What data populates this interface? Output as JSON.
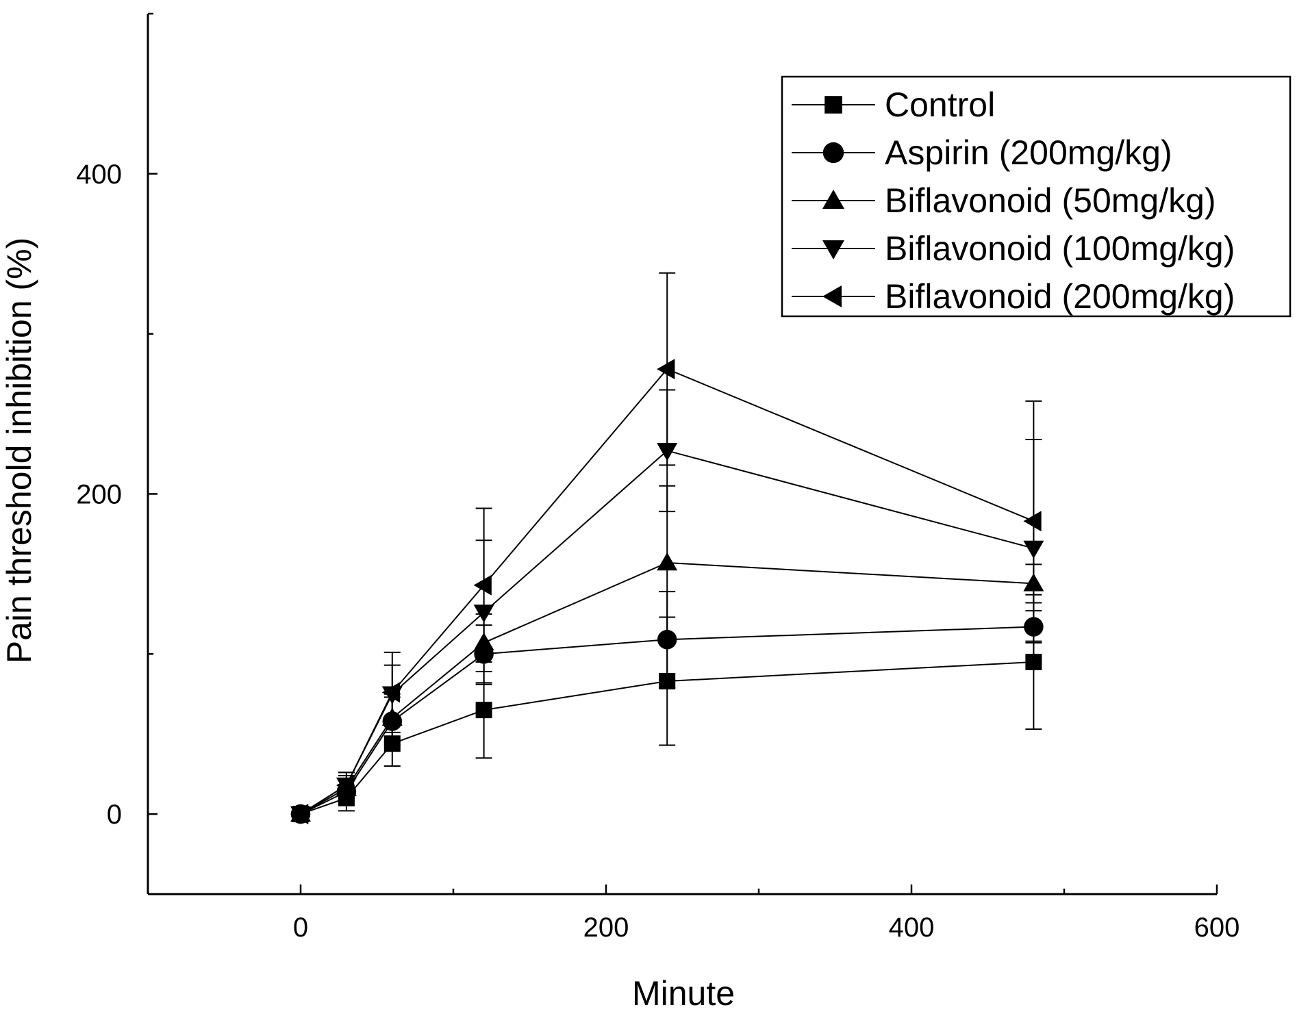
{
  "chart_data": {
    "type": "line",
    "title": "",
    "xlabel": "Minute",
    "ylabel": "Pain threshold inhibition (%)",
    "xlim": [
      -100,
      600
    ],
    "ylim": [
      -50,
      500
    ],
    "x_ticks": [
      0,
      200,
      400,
      600
    ],
    "x_minor_ticks": [
      -100,
      100,
      300,
      500
    ],
    "y_ticks": [
      0,
      200,
      400
    ],
    "y_minor_ticks": [
      -50,
      100,
      300,
      500
    ],
    "x_tick_labels": [
      "0",
      "200",
      "400",
      "600"
    ],
    "y_tick_labels": [
      "0",
      "200",
      "400"
    ],
    "legend_position": "top-right",
    "x": [
      0,
      30,
      60,
      120,
      240,
      480
    ],
    "series": [
      {
        "name": "Control",
        "marker": "square",
        "values": [
          0,
          10,
          44,
          65,
          83,
          95
        ],
        "errors": [
          0,
          8,
          14,
          30,
          40,
          42
        ]
      },
      {
        "name": "Aspirin (200mg/kg)",
        "marker": "circle",
        "values": [
          0,
          14,
          58,
          100,
          109,
          117
        ],
        "errors": [
          0,
          8,
          15,
          18,
          30,
          10
        ]
      },
      {
        "name": "Biflavonoid (50mg/kg)",
        "marker": "triangle-up",
        "values": [
          0,
          16,
          60,
          107,
          157,
          144
        ],
        "errors": [
          0,
          8,
          15,
          18,
          48,
          12
        ]
      },
      {
        "name": "Biflavonoid (100mg/kg)",
        "marker": "triangle-down",
        "values": [
          0,
          18,
          75,
          126,
          227,
          166
        ],
        "errors": [
          0,
          8,
          18,
          45,
          38,
          68
        ]
      },
      {
        "name": "Biflavonoid (200mg/kg)",
        "marker": "triangle-left",
        "values": [
          0,
          18,
          76,
          143,
          278,
          183
        ],
        "errors": [
          0,
          8,
          25,
          48,
          60,
          75
        ]
      }
    ]
  }
}
